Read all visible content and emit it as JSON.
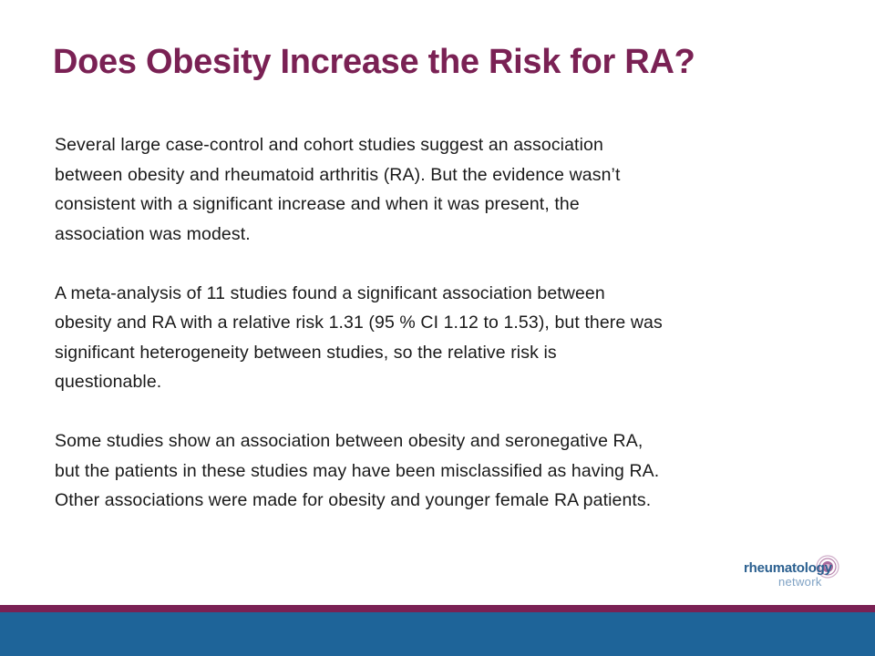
{
  "slide": {
    "title": "Does Obesity Increase the Risk for RA?",
    "paragraphs": [
      {
        "lines": [
          "Several large case-control and cohort studies suggest an association",
          "between obesity and rheumatoid arthritis (RA). But the evidence wasn’t",
          "consistent with a significant increase and when it was present, the",
          "association was modest."
        ]
      },
      {
        "lines": [
          "A meta-analysis of 11 studies found a significant association between",
          "obesity and RA with a relative risk 1.31 (95 % CI 1.12 to 1.53), but there was",
          "significant heterogeneity between studies, so the relative risk is",
          "questionable."
        ]
      },
      {
        "lines": [
          "Some studies show an association between obesity and seronegative RA,",
          "but the patients in these studies may have been misclassified as having RA.",
          "Other associations were made for obesity and younger female RA patients."
        ]
      }
    ]
  },
  "logo": {
    "word_top": "rheumatology",
    "word_bottom": "network",
    "mark_icon": "purple-circle-mark-icon"
  },
  "colors": {
    "title": "#7a2154",
    "accent_bar": "#7a2154",
    "footer_bar": "#1e6499",
    "logo_text": "#2a5f8f"
  }
}
